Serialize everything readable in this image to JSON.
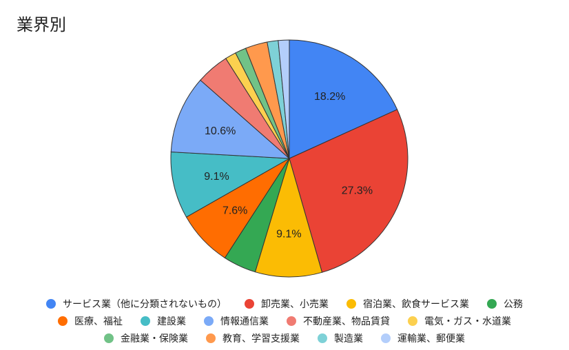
{
  "chart_data": {
    "type": "pie",
    "title": "業界別",
    "legend_position": "bottom",
    "categories": [
      "サービス業（他に分類されないもの）",
      "卸売業、小売業",
      "宿泊業、飲食サービス業",
      "公務",
      "医療、福祉",
      "建設業",
      "情報通信業",
      "不動産業、物品賃貸",
      "電気・ガス・水道業",
      "金融業・保険業",
      "教育、学習支援業",
      "製造業",
      "運輸業、郵便業"
    ],
    "values": [
      18.2,
      27.3,
      9.1,
      4.5,
      7.6,
      9.1,
      10.6,
      4.5,
      1.5,
      1.5,
      3.0,
      1.5,
      1.5
    ],
    "data_labels": [
      "18.2%",
      "27.3%",
      "9.1%",
      "",
      "7.6%",
      "9.1%",
      "10.6%",
      "",
      "",
      "",
      "",
      "",
      ""
    ],
    "colors": [
      "#4285f4",
      "#ea4335",
      "#fbbc04",
      "#34a853",
      "#ff6d01",
      "#46bdc6",
      "#7baaf7",
      "#f07b72",
      "#fcd04f",
      "#71c287",
      "#ff994d",
      "#7ed1d7",
      "#b3cefb"
    ]
  }
}
